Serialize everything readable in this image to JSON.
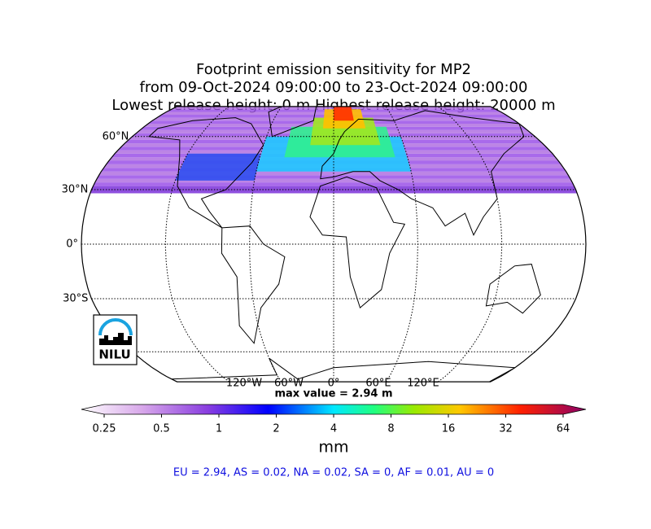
{
  "title": [
    "Footprint emission sensitivity for MP2",
    "from 09-Oct-2024 09:00:00 to 23-Oct-2024 09:00:00",
    "Lowest release height: 0 m       Highest release height: 20000 m"
  ],
  "map": {
    "lat_ticks": [
      {
        "value": 60,
        "label": "60°N"
      },
      {
        "value": 30,
        "label": "30°N"
      },
      {
        "value": 0,
        "label": "0°"
      },
      {
        "value": -30,
        "label": "30°S"
      }
    ],
    "lon_ticks": [
      {
        "value": -120,
        "label": "120°W"
      },
      {
        "value": -60,
        "label": "60°W"
      },
      {
        "value": 0,
        "label": "0°"
      },
      {
        "value": 60,
        "label": "60°E"
      },
      {
        "value": 120,
        "label": "120°E"
      }
    ],
    "logo": "NILU"
  },
  "max_value": "max value = 2.94 m",
  "colorbar": {
    "scale": "log",
    "ticks": [
      0.25,
      0.5,
      1,
      2,
      4,
      8,
      16,
      32,
      64
    ],
    "label": "mm"
  },
  "regions": "EU = 2.94,  AS = 0.02,  NA = 0.02,  SA = 0,  AF = 0.01,  AU = 0"
}
